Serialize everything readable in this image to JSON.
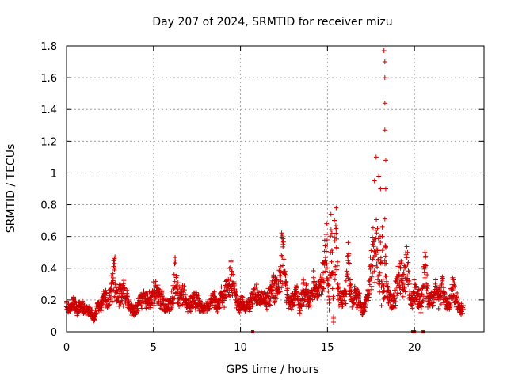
{
  "chart_data": {
    "type": "scatter",
    "title": "Day 207 of 2024, SRMTID for receiver mizu",
    "xlabel": "GPS time / hours",
    "ylabel": "SRMTID / TECUs",
    "xlim": [
      0,
      24
    ],
    "ylim": [
      0,
      1.8
    ],
    "x_ticks": [
      0,
      5,
      10,
      15,
      20
    ],
    "x_tick_labels": [
      "0",
      "5",
      "10",
      "15",
      "20"
    ],
    "y_ticks": [
      0,
      0.2,
      0.4,
      0.6,
      0.8,
      1.0,
      1.2,
      1.4,
      1.6,
      1.8
    ],
    "y_tick_labels": [
      "0",
      "0.2",
      "0.4",
      "0.6",
      "0.8",
      "1",
      "1.2",
      "1.4",
      "1.6",
      "1.8"
    ],
    "grid": true,
    "marker": "+",
    "series_color": "#cc0000",
    "series": [
      {
        "name": "SRMTID",
        "x": [
          0.0,
          0.2,
          0.4,
          0.6,
          0.8,
          1.0,
          1.2,
          1.4,
          1.6,
          1.8,
          2.0,
          2.2,
          2.4,
          2.6,
          2.75,
          2.9,
          3.1,
          3.3,
          3.5,
          3.7,
          3.9,
          4.1,
          4.3,
          4.5,
          4.7,
          4.9,
          5.1,
          5.3,
          5.5,
          5.7,
          5.9,
          6.1,
          6.3,
          6.5,
          6.7,
          6.9,
          7.1,
          7.3,
          7.5,
          7.7,
          7.9,
          8.1,
          8.3,
          8.5,
          8.7,
          8.9,
          9.1,
          9.3,
          9.5,
          9.7,
          9.9,
          10.1,
          10.3,
          10.5,
          10.7,
          10.9,
          11.1,
          11.3,
          11.5,
          11.7,
          11.9,
          12.1,
          12.3,
          12.45,
          12.6,
          12.8,
          13.0,
          13.2,
          13.4,
          13.6,
          13.8,
          14.0,
          14.2,
          14.4,
          14.6,
          14.8,
          14.95,
          15.1,
          15.25,
          15.4,
          15.5,
          15.6,
          15.8,
          16.0,
          16.2,
          16.4,
          16.6,
          16.8,
          17.0,
          17.2,
          17.4,
          17.6,
          17.7,
          17.8,
          17.9,
          18.0,
          18.1,
          18.2,
          18.3,
          18.4,
          18.6,
          18.8,
          19.0,
          19.2,
          19.4,
          19.6,
          19.8,
          20.0,
          20.2,
          20.4,
          20.6,
          20.8,
          21.0,
          21.2,
          21.4,
          21.6,
          21.8,
          22.0,
          22.2,
          22.4,
          22.6,
          22.8,
          18.25,
          18.3,
          18.3,
          18.3,
          18.3,
          18.35,
          17.95,
          18.05,
          18.35,
          18.3,
          18.35,
          18.15,
          15.35,
          15.2,
          16.3,
          12.4,
          6.25,
          2.75,
          9.45
        ],
        "y": [
          0.18,
          0.15,
          0.2,
          0.14,
          0.17,
          0.16,
          0.14,
          0.12,
          0.08,
          0.17,
          0.18,
          0.24,
          0.2,
          0.3,
          0.43,
          0.26,
          0.27,
          0.28,
          0.22,
          0.15,
          0.13,
          0.18,
          0.22,
          0.23,
          0.2,
          0.24,
          0.29,
          0.25,
          0.22,
          0.16,
          0.19,
          0.22,
          0.35,
          0.24,
          0.27,
          0.2,
          0.18,
          0.23,
          0.21,
          0.17,
          0.14,
          0.16,
          0.2,
          0.22,
          0.19,
          0.24,
          0.26,
          0.33,
          0.38,
          0.25,
          0.18,
          0.2,
          0.16,
          0.19,
          0.24,
          0.28,
          0.2,
          0.23,
          0.22,
          0.26,
          0.34,
          0.3,
          0.41,
          0.55,
          0.3,
          0.18,
          0.24,
          0.28,
          0.15,
          0.3,
          0.25,
          0.22,
          0.34,
          0.26,
          0.31,
          0.44,
          0.68,
          0.2,
          0.62,
          0.7,
          0.78,
          0.3,
          0.22,
          0.24,
          0.48,
          0.2,
          0.26,
          0.24,
          0.12,
          0.2,
          0.32,
          0.55,
          0.95,
          1.1,
          0.45,
          0.3,
          0.28,
          0.33,
          0.22,
          0.3,
          0.24,
          0.2,
          0.35,
          0.4,
          0.36,
          0.5,
          0.2,
          0.28,
          0.24,
          0.18,
          0.5,
          0.22,
          0.22,
          0.3,
          0.24,
          0.32,
          0.2,
          0.18,
          0.34,
          0.22,
          0.16,
          0.14,
          1.77,
          1.7,
          1.6,
          1.44,
          1.27,
          1.08,
          0.98,
          0.9,
          0.9,
          0.71,
          0.53,
          0.6,
          0.06,
          0.74,
          0.33,
          0.57,
          0.45,
          0.46,
          0.44
        ]
      }
    ],
    "extra_points": {
      "x": [
        10.7,
        19.9,
        20.0,
        20.5
      ],
      "y": [
        0,
        0,
        0,
        0
      ]
    }
  }
}
